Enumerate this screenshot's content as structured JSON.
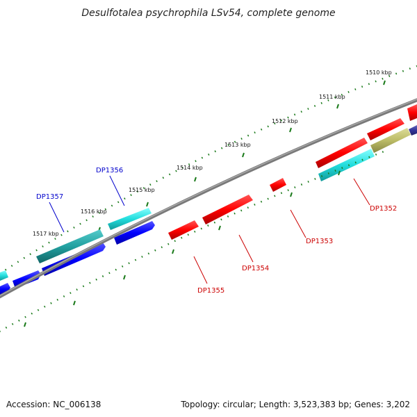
{
  "title": "Desulfotalea psychrophila LSv54, complete genome",
  "footer": {
    "accession": "Accession: NC_006138",
    "summary": "Topology: circular; Length: 3,523,383 bp; Genes: 3,202"
  },
  "ruler": {
    "labels": [
      "1510 kbp",
      "1511 kbp",
      "1512 kbp",
      "1513 kbp",
      "1514 kbp",
      "1515 kbp",
      "1516 kbp",
      "1517 kbp"
    ]
  },
  "genes": [
    {
      "id": "DP1352",
      "color": "#cc0000"
    },
    {
      "id": "DP1353",
      "color": "#cc0000"
    },
    {
      "id": "DP1354",
      "color": "#cc0000"
    },
    {
      "id": "DP1355",
      "color": "#cc0000"
    },
    {
      "id": "DP1356",
      "color": "#0000cc"
    },
    {
      "id": "DP1357",
      "color": "#0000cc"
    }
  ],
  "colors": {
    "backbone": "#7a7a7a",
    "tick": "#1a7a1a",
    "forward_cds": "#ff0000",
    "reverse_cds": "#0000ff",
    "rna": "#33dddd",
    "other": "#bbbb66",
    "dark_blue": "#333399"
  }
}
